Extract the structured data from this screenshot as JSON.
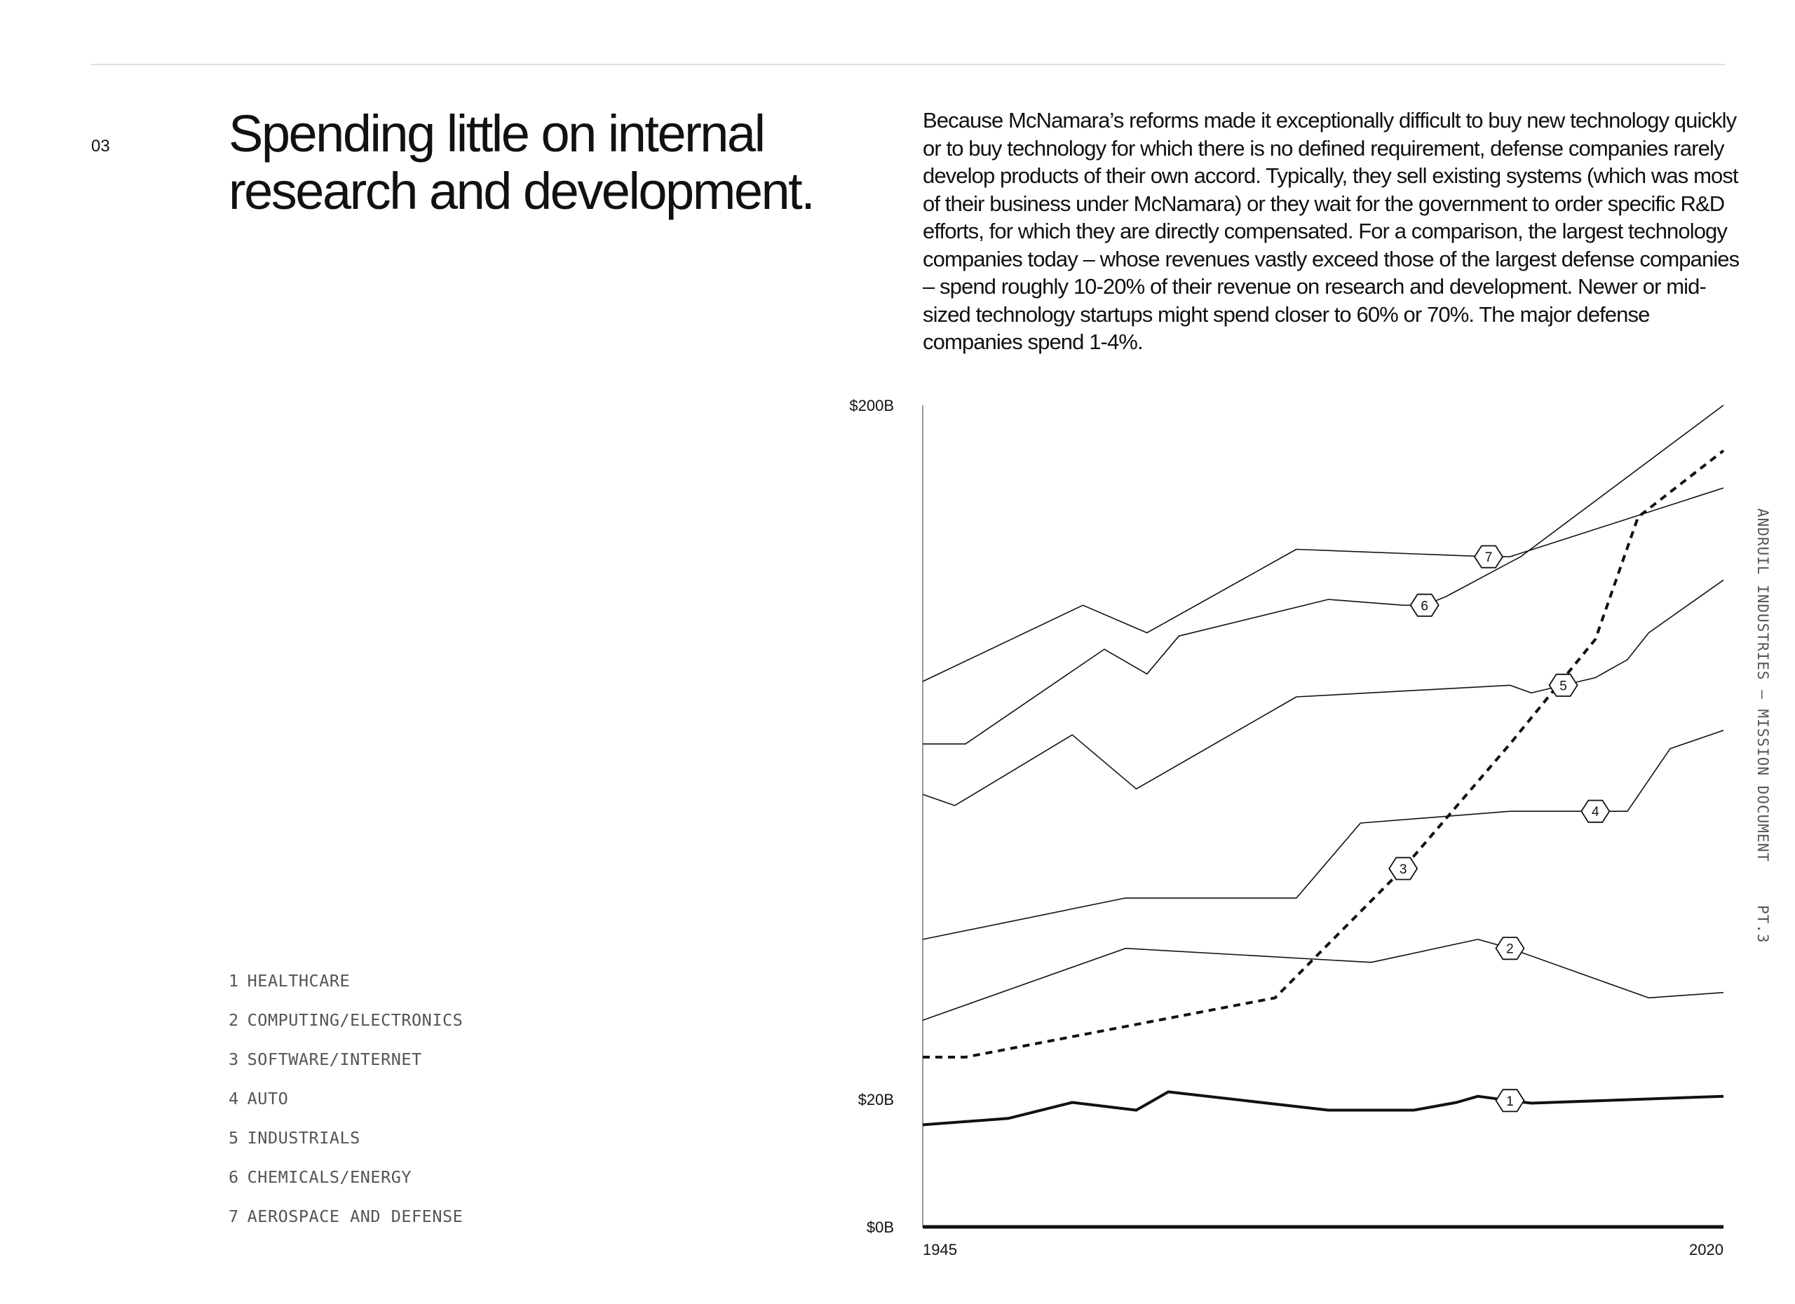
{
  "header": {
    "section_number": "03",
    "title_line1": "Spending little on internal",
    "title_line2": "research and development."
  },
  "body_text": "Because McNamara’s reforms made it exceptionally difficult to buy new technology quickly or to buy technology for which there is no defined requirement, defense companies rarely develop products of their own accord. Typically, they sell existing systems (which was most of their business under McNamara) or they wait for the government to order specific R&D efforts, for which they are directly compensated. For a comparison, the largest technology companies today – whose revenues vastly exceed those of the largest defense companies – spend roughly 10-20% of their revenue on research and development. Newer or mid-sized technology startups might spend closer to 60% or 70%. The major defense companies spend 1-4%.",
  "side_label": {
    "left": "ANDRUIL INDUSTRIES – MISSION DOCUMENT",
    "right": "PT.3"
  },
  "legend": [
    {
      "num": "1",
      "label": "HEALTHCARE"
    },
    {
      "num": "2",
      "label": "COMPUTING/ELECTRONICS"
    },
    {
      "num": "3",
      "label": "SOFTWARE/INTERNET"
    },
    {
      "num": "4",
      "label": "AUTO"
    },
    {
      "num": "5",
      "label": "INDUSTRIALS"
    },
    {
      "num": "6",
      "label": "CHEMICALS/ENERGY"
    },
    {
      "num": "7",
      "label": "AEROSPACE AND DEFENSE"
    }
  ],
  "colors": {
    "line": "#111111",
    "axis": "#999999",
    "text": "#111111",
    "muted": "#555555"
  },
  "chart_data": {
    "type": "line",
    "title": "",
    "xlabel": "",
    "ylabel": "",
    "xlim": [
      1945,
      2020
    ],
    "x_tick_labels": [
      "1945",
      "2020"
    ],
    "y_tick_labels": [
      {
        "label": "$200B",
        "value": 200
      },
      {
        "label": "$20B",
        "value": 20
      },
      {
        "label": "$0B",
        "value": 0
      }
    ],
    "y_scale": "non-linear (ticks $0B, $20B, $200B)",
    "grid": false,
    "legend_position": "bottom-left",
    "series": [
      {
        "id": 1,
        "style": "bold",
        "marker_label": "1",
        "marker_year": 2000,
        "points": [
          [
            1945,
            16
          ],
          [
            1953,
            17
          ],
          [
            1959,
            19.5
          ],
          [
            1965,
            18.3
          ],
          [
            1968,
            20.5
          ],
          [
            1983,
            18.3
          ],
          [
            1991,
            18.3
          ],
          [
            1995,
            19.5
          ],
          [
            1997,
            20.2
          ],
          [
            2000,
            19.8
          ],
          [
            2002,
            19.4
          ],
          [
            2020,
            20.2
          ]
        ]
      },
      {
        "id": 2,
        "style": "thin",
        "marker_label": "2",
        "marker_year": 2000,
        "points": [
          [
            1945,
            26
          ],
          [
            1964,
            33
          ],
          [
            1987,
            31.5
          ],
          [
            1997,
            34
          ],
          [
            2000,
            33
          ],
          [
            2013,
            28
          ],
          [
            2020,
            28.5
          ]
        ]
      },
      {
        "id": 3,
        "style": "dashed",
        "marker_label": "3",
        "marker_year": 1990,
        "points": [
          [
            1945,
            23
          ],
          [
            1949,
            23
          ],
          [
            1978,
            28
          ],
          [
            1990,
            43
          ],
          [
            2000,
            65
          ],
          [
            2008,
            92
          ],
          [
            2012,
            138
          ],
          [
            2020,
            172
          ]
        ]
      },
      {
        "id": 4,
        "style": "thin",
        "marker_label": "4",
        "marker_year": 2008,
        "points": [
          [
            1945,
            34
          ],
          [
            1964,
            39
          ],
          [
            1980,
            39
          ],
          [
            1986,
            50
          ],
          [
            2000,
            52
          ],
          [
            2008,
            52
          ],
          [
            2011,
            52
          ],
          [
            2015,
            64
          ],
          [
            2020,
            68
          ]
        ]
      },
      {
        "id": 5,
        "style": "thin",
        "marker_label": "5",
        "marker_year": 2005,
        "points": [
          [
            1945,
            55
          ],
          [
            1948,
            53
          ],
          [
            1959,
            67
          ],
          [
            1965,
            56
          ],
          [
            1980,
            76
          ],
          [
            2000,
            79
          ],
          [
            2002,
            77
          ],
          [
            2005,
            79
          ],
          [
            2008,
            81
          ],
          [
            2011,
            86
          ],
          [
            2013,
            94
          ],
          [
            2020,
            112
          ]
        ]
      },
      {
        "id": 6,
        "style": "thin",
        "marker_label": "6",
        "marker_year": 1992,
        "points": [
          [
            1945,
            65
          ],
          [
            1949,
            65
          ],
          [
            1962,
            89
          ],
          [
            1966,
            82
          ],
          [
            1969,
            93
          ],
          [
            1983,
            105
          ],
          [
            1990,
            103
          ],
          [
            1992,
            103
          ],
          [
            1994,
            106
          ],
          [
            2001,
            121
          ],
          [
            2020,
            200
          ]
        ]
      },
      {
        "id": 7,
        "style": "thin",
        "marker_label": "7",
        "marker_year": 1998,
        "points": [
          [
            1945,
            80
          ],
          [
            1960,
            103
          ],
          [
            1966,
            94
          ],
          [
            1980,
            124
          ],
          [
            1998,
            121
          ],
          [
            2000,
            121
          ],
          [
            2020,
            152
          ]
        ]
      }
    ]
  }
}
